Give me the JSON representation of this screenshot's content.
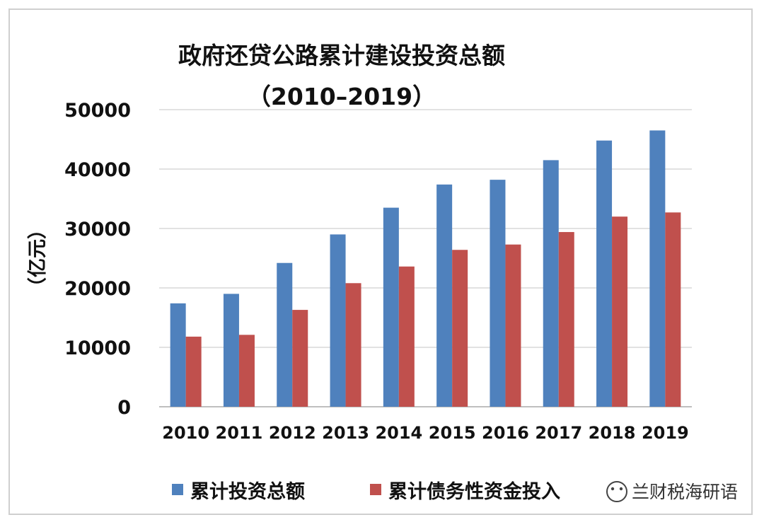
{
  "chart_data": {
    "type": "bar",
    "title": "政府还贷公路累计建设投资总额",
    "subtitle": "（2010–2019）",
    "ylabel": "（亿元）",
    "xlabel": "",
    "categories": [
      "2010",
      "2011",
      "2012",
      "2013",
      "2014",
      "2015",
      "2016",
      "2017",
      "2018",
      "2019"
    ],
    "series": [
      {
        "name": "累计投资总额",
        "color": "#4f81bd",
        "values": [
          17400,
          19000,
          24200,
          29000,
          33500,
          37400,
          38200,
          41500,
          44800,
          46500
        ]
      },
      {
        "name": "累计债务性资金投入",
        "color": "#c0504d",
        "values": [
          11800,
          12100,
          16300,
          20800,
          23600,
          26400,
          27300,
          29400,
          32000,
          32700
        ]
      }
    ],
    "ylim": [
      0,
      50000
    ],
    "yticks": [
      0,
      10000,
      20000,
      30000,
      40000,
      50000
    ],
    "grid": true,
    "legend": "bottom"
  },
  "watermark": {
    "text": "兰财税海研语",
    "icon": "wechat-icon"
  }
}
